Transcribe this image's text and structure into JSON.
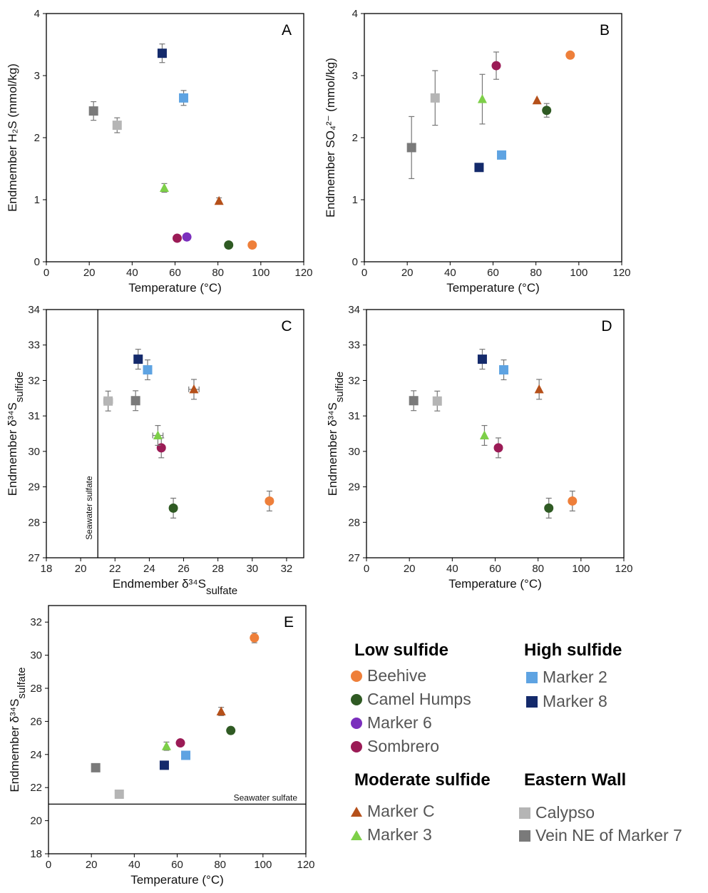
{
  "colors": {
    "Beehive": "#ee7f3a",
    "Camel Humps": "#2f5a23",
    "Marker 6": "#7b2fbd",
    "Sombrero": "#9b1b56",
    "Marker 2": "#5ea3e2",
    "Marker 8": "#142a6b",
    "Marker C": "#b5501a",
    "Marker 3": "#7dcf48",
    "Calypso": "#b5b5b5",
    "Vein NE of Marker 7": "#7a7a7a",
    "errorbar": "#777777"
  },
  "legend": {
    "groups": [
      {
        "title": "Low sulfide",
        "items": [
          {
            "label": "Beehive",
            "marker": "circle"
          },
          {
            "label": "Camel Humps",
            "marker": "circle"
          },
          {
            "label": "Marker 6",
            "marker": "circle"
          },
          {
            "label": "Sombrero",
            "marker": "circle"
          }
        ]
      },
      {
        "title": "High sulfide",
        "items": [
          {
            "label": "Marker 2",
            "marker": "square"
          },
          {
            "label": "Marker 8",
            "marker": "square"
          }
        ]
      },
      {
        "title": "Moderate sulfide",
        "items": [
          {
            "label": "Marker C",
            "marker": "triangle"
          },
          {
            "label": "Marker 3",
            "marker": "triangle"
          }
        ]
      },
      {
        "title": "Eastern Wall",
        "items": [
          {
            "label": "Calypso",
            "marker": "square"
          },
          {
            "label": "Vein NE of Marker 7",
            "marker": "square"
          }
        ]
      }
    ]
  },
  "chart_data": [
    {
      "panel": "A",
      "type": "scatter",
      "xlabel": "Temperature (°C)",
      "ylabel": "Endmember H₂S (mmol/kg)",
      "xlim": [
        0,
        120
      ],
      "ylim": [
        0,
        4
      ],
      "xticks": [
        0,
        20,
        40,
        60,
        80,
        100,
        120
      ],
      "yticks": [
        0,
        1,
        2,
        3,
        4
      ],
      "series": [
        {
          "name": "Beehive",
          "marker": "circle",
          "points": [
            {
              "x": 96,
              "y": 0.27
            }
          ]
        },
        {
          "name": "Camel Humps",
          "marker": "circle",
          "points": [
            {
              "x": 85,
              "y": 0.27
            }
          ]
        },
        {
          "name": "Marker 6",
          "marker": "circle",
          "points": [
            {
              "x": 65.5,
              "y": 0.4
            }
          ]
        },
        {
          "name": "Sombrero",
          "marker": "circle",
          "points": [
            {
              "x": 61,
              "y": 0.38
            }
          ]
        },
        {
          "name": "Marker 2",
          "marker": "square",
          "points": [
            {
              "x": 64,
              "y": 2.64,
              "yerr": 0.12
            }
          ]
        },
        {
          "name": "Marker 8",
          "marker": "square",
          "points": [
            {
              "x": 54,
              "y": 3.36,
              "yerr": 0.15
            }
          ]
        },
        {
          "name": "Marker C",
          "marker": "triangle",
          "points": [
            {
              "x": 80.5,
              "y": 0.98,
              "yerr": 0.05
            }
          ]
        },
        {
          "name": "Marker 3",
          "marker": "triangle",
          "points": [
            {
              "x": 55,
              "y": 1.19,
              "yerr": 0.07
            }
          ]
        },
        {
          "name": "Calypso",
          "marker": "square",
          "points": [
            {
              "x": 33,
              "y": 2.2,
              "yerr": 0.12
            }
          ]
        },
        {
          "name": "Vein NE of Marker 7",
          "marker": "square",
          "points": [
            {
              "x": 22,
              "y": 2.43,
              "yerr": 0.15
            }
          ]
        }
      ]
    },
    {
      "panel": "B",
      "type": "scatter",
      "xlabel": "Temperature (°C)",
      "ylabel": "Endmember SO₄²⁻ (mmol/kg)",
      "xlim": [
        0,
        120
      ],
      "ylim": [
        0,
        4
      ],
      "xticks": [
        0,
        20,
        40,
        60,
        80,
        100,
        120
      ],
      "yticks": [
        0,
        1,
        2,
        3,
        4
      ],
      "series": [
        {
          "name": "Beehive",
          "marker": "circle",
          "points": [
            {
              "x": 96,
              "y": 3.33
            }
          ]
        },
        {
          "name": "Camel Humps",
          "marker": "circle",
          "points": [
            {
              "x": 85,
              "y": 2.44,
              "yerr": 0.11
            }
          ]
        },
        {
          "name": "Sombrero",
          "marker": "circle",
          "points": [
            {
              "x": 61.5,
              "y": 3.16,
              "yerr": 0.22
            }
          ]
        },
        {
          "name": "Marker 2",
          "marker": "square",
          "points": [
            {
              "x": 64,
              "y": 1.72
            }
          ]
        },
        {
          "name": "Marker 8",
          "marker": "square",
          "points": [
            {
              "x": 53.5,
              "y": 1.52
            }
          ]
        },
        {
          "name": "Marker C",
          "marker": "triangle",
          "points": [
            {
              "x": 80.5,
              "y": 2.6
            }
          ]
        },
        {
          "name": "Marker 3",
          "marker": "triangle",
          "points": [
            {
              "x": 55,
              "y": 2.62,
              "yerr": 0.4
            }
          ]
        },
        {
          "name": "Calypso",
          "marker": "square",
          "points": [
            {
              "x": 33,
              "y": 2.64,
              "yerr": 0.44
            }
          ]
        },
        {
          "name": "Vein NE of Marker 7",
          "marker": "square",
          "points": [
            {
              "x": 22,
              "y": 1.84,
              "yerr": 0.5
            }
          ]
        }
      ]
    },
    {
      "panel": "C",
      "type": "scatter",
      "xlabel": "Endmember δ³⁴S",
      "xlabel_sub": "sulfate",
      "ylabel": "Endmember δ³⁴S",
      "ylabel_sub": "sulfide",
      "xlim": [
        18,
        33
      ],
      "ylim": [
        27,
        34
      ],
      "xticks": [
        18,
        20,
        22,
        24,
        26,
        28,
        30,
        32
      ],
      "yticks": [
        27,
        28,
        29,
        30,
        31,
        32,
        33,
        34
      ],
      "reference_line": {
        "axis": "x",
        "value": 21,
        "label": "Seawater sulfate"
      },
      "series": [
        {
          "name": "Beehive",
          "marker": "circle",
          "points": [
            {
              "x": 31,
              "y": 28.6,
              "yerr": 0.28,
              "xerr": 0.2
            }
          ]
        },
        {
          "name": "Camel Humps",
          "marker": "circle",
          "points": [
            {
              "x": 25.4,
              "y": 28.4,
              "yerr": 0.28,
              "xerr": 0.2
            }
          ]
        },
        {
          "name": "Sombrero",
          "marker": "circle",
          "points": [
            {
              "x": 24.7,
              "y": 30.1,
              "yerr": 0.28
            }
          ]
        },
        {
          "name": "Marker 2",
          "marker": "square",
          "points": [
            {
              "x": 23.9,
              "y": 32.3,
              "yerr": 0.28
            }
          ]
        },
        {
          "name": "Marker 8",
          "marker": "square",
          "points": [
            {
              "x": 23.35,
              "y": 32.6,
              "yerr": 0.28
            }
          ]
        },
        {
          "name": "Marker C",
          "marker": "triangle",
          "points": [
            {
              "x": 26.6,
              "y": 31.75,
              "yerr": 0.28,
              "xerr": 0.3
            }
          ]
        },
        {
          "name": "Marker 3",
          "marker": "triangle",
          "points": [
            {
              "x": 24.5,
              "y": 30.45,
              "yerr": 0.28,
              "xerr": 0.3
            }
          ]
        },
        {
          "name": "Calypso",
          "marker": "square",
          "points": [
            {
              "x": 21.6,
              "y": 31.42,
              "yerr": 0.28,
              "xerr": 0.25
            }
          ]
        },
        {
          "name": "Vein NE of Marker 7",
          "marker": "square",
          "points": [
            {
              "x": 23.2,
              "y": 31.43,
              "yerr": 0.28
            }
          ]
        }
      ]
    },
    {
      "panel": "D",
      "type": "scatter",
      "xlabel": "Temperature (°C)",
      "ylabel": "Endmember δ³⁴S",
      "ylabel_sub": "sulfide",
      "xlim": [
        0,
        120
      ],
      "ylim": [
        27,
        34
      ],
      "xticks": [
        0,
        20,
        40,
        60,
        80,
        100,
        120
      ],
      "yticks": [
        27,
        28,
        29,
        30,
        31,
        32,
        33,
        34
      ],
      "series": [
        {
          "name": "Beehive",
          "marker": "circle",
          "points": [
            {
              "x": 96,
              "y": 28.6,
              "yerr": 0.28
            }
          ]
        },
        {
          "name": "Camel Humps",
          "marker": "circle",
          "points": [
            {
              "x": 85,
              "y": 28.4,
              "yerr": 0.28
            }
          ]
        },
        {
          "name": "Sombrero",
          "marker": "circle",
          "points": [
            {
              "x": 61.5,
              "y": 30.1,
              "yerr": 0.28
            }
          ]
        },
        {
          "name": "Marker 2",
          "marker": "square",
          "points": [
            {
              "x": 64,
              "y": 32.3,
              "yerr": 0.28
            }
          ]
        },
        {
          "name": "Marker 8",
          "marker": "square",
          "points": [
            {
              "x": 54,
              "y": 32.6,
              "yerr": 0.28
            }
          ]
        },
        {
          "name": "Marker C",
          "marker": "triangle",
          "points": [
            {
              "x": 80.5,
              "y": 31.75,
              "yerr": 0.28
            }
          ]
        },
        {
          "name": "Marker 3",
          "marker": "triangle",
          "points": [
            {
              "x": 55,
              "y": 30.45,
              "yerr": 0.28
            }
          ]
        },
        {
          "name": "Calypso",
          "marker": "square",
          "points": [
            {
              "x": 33,
              "y": 31.42,
              "yerr": 0.28
            }
          ]
        },
        {
          "name": "Vein NE of Marker 7",
          "marker": "square",
          "points": [
            {
              "x": 22,
              "y": 31.43,
              "yerr": 0.28
            }
          ]
        }
      ]
    },
    {
      "panel": "E",
      "type": "scatter",
      "xlabel": "Temperature (°C)",
      "ylabel": "Endmember δ³⁴S",
      "ylabel_sub": "sulfate",
      "xlim": [
        0,
        120
      ],
      "ylim": [
        18,
        33
      ],
      "xticks": [
        0,
        20,
        40,
        60,
        80,
        100,
        120
      ],
      "yticks": [
        18,
        20,
        22,
        24,
        26,
        28,
        30,
        32
      ],
      "reference_line": {
        "axis": "y",
        "value": 21,
        "label": "Seawater sulfate"
      },
      "series": [
        {
          "name": "Beehive",
          "marker": "circle",
          "points": [
            {
              "x": 96,
              "y": 31.05,
              "yerr": 0.3
            }
          ]
        },
        {
          "name": "Camel Humps",
          "marker": "circle",
          "points": [
            {
              "x": 85,
              "y": 25.45,
              "yerr": 0.2
            }
          ]
        },
        {
          "name": "Sombrero",
          "marker": "circle",
          "points": [
            {
              "x": 61.5,
              "y": 24.7
            }
          ]
        },
        {
          "name": "Marker 2",
          "marker": "square",
          "points": [
            {
              "x": 64,
              "y": 23.95
            }
          ]
        },
        {
          "name": "Marker 8",
          "marker": "square",
          "points": [
            {
              "x": 54,
              "y": 23.35
            }
          ]
        },
        {
          "name": "Marker C",
          "marker": "triangle",
          "points": [
            {
              "x": 80.5,
              "y": 26.6,
              "yerr": 0.25
            }
          ]
        },
        {
          "name": "Marker 3",
          "marker": "triangle",
          "points": [
            {
              "x": 55,
              "y": 24.5,
              "yerr": 0.25
            }
          ]
        },
        {
          "name": "Calypso",
          "marker": "square",
          "points": [
            {
              "x": 33,
              "y": 21.6
            }
          ]
        },
        {
          "name": "Vein NE of Marker 7",
          "marker": "square",
          "points": [
            {
              "x": 22,
              "y": 23.2
            }
          ]
        }
      ]
    }
  ]
}
